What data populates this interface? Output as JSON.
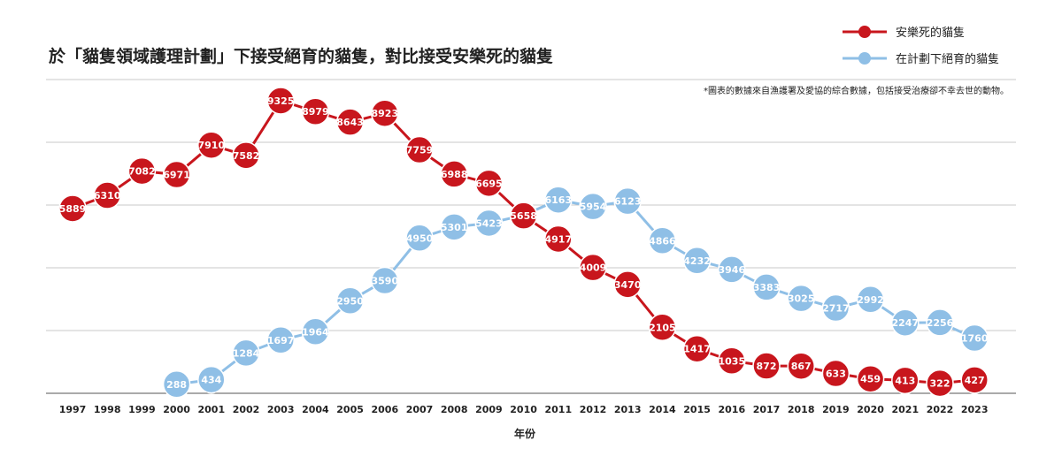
{
  "chart_data": {
    "type": "line",
    "title": "於「貓隻領域護理計劃」下接受絕育的貓隻，對比接受安樂死的貓隻",
    "note": "*圖表的數據來自漁護署及愛協的綜合數據，包括接受治療卻不幸去世的動物。",
    "xlabel": "年份",
    "ylabel": "",
    "ylim": [
      0,
      10000
    ],
    "grid": true,
    "legend_position": "top-right",
    "x": [
      1997,
      1998,
      1999,
      2000,
      2001,
      2002,
      2003,
      2004,
      2005,
      2006,
      2007,
      2008,
      2009,
      2010,
      2011,
      2012,
      2013,
      2014,
      2015,
      2016,
      2017,
      2018,
      2019,
      2020,
      2021,
      2022,
      2023
    ],
    "series": [
      {
        "name": "安樂死的貓隻",
        "color": "#c8161d",
        "values": [
          5889,
          6310,
          7082,
          6971,
          7910,
          7582,
          9325,
          8979,
          8643,
          8923,
          7759,
          6988,
          6695,
          5658,
          4917,
          4009,
          3470,
          2105,
          1417,
          1035,
          872,
          867,
          633,
          459,
          413,
          322,
          427
        ]
      },
      {
        "name": "在計劃下絕育的貓隻",
        "color": "#8fbfe6",
        "values": [
          null,
          null,
          null,
          288,
          434,
          1284,
          1697,
          1964,
          2950,
          3590,
          4950,
          5301,
          5423,
          5675,
          6163,
          5954,
          6123,
          4866,
          4232,
          3946,
          3383,
          3025,
          2717,
          2992,
          2247,
          2256,
          1760
        ]
      }
    ]
  }
}
